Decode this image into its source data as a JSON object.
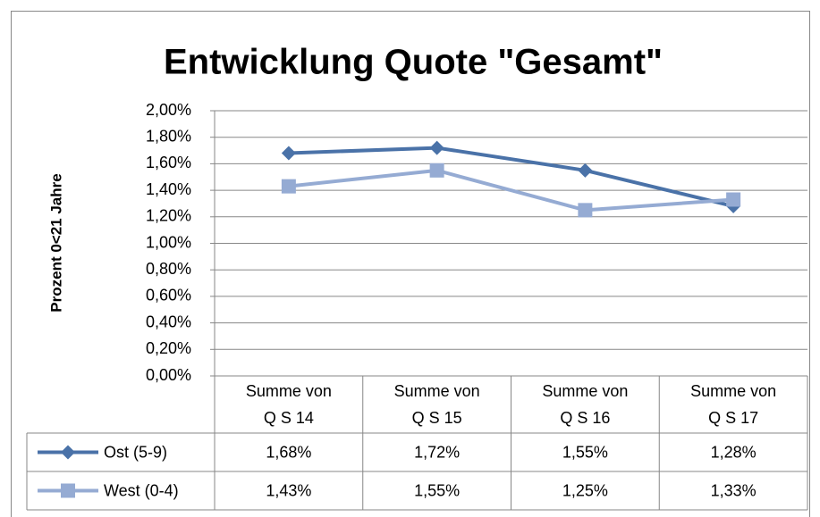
{
  "chart_data": {
    "type": "line",
    "title": "Entwicklung Quote \"Gesamt\"",
    "y_label": "Prozent 0<21 Jahre",
    "categories": [
      "Summe von Q S 14",
      "Summe von Q S 15",
      "Summe von Q S 16",
      "Summe von Q S 17"
    ],
    "series": [
      {
        "name": "Ost (5-9)",
        "color": "#4a72a8",
        "marker": "diamond",
        "values": [
          1.68,
          1.72,
          1.55,
          1.28
        ],
        "value_labels": [
          "1,68%",
          "1,72%",
          "1,55%",
          "1,28%"
        ]
      },
      {
        "name": "West (0-4)",
        "color": "#95abd3",
        "marker": "square",
        "values": [
          1.43,
          1.55,
          1.25,
          1.33
        ],
        "value_labels": [
          "1,43%",
          "1,55%",
          "1,25%",
          "1,33%"
        ]
      }
    ],
    "ylim": [
      0,
      2
    ],
    "yticks": [
      {
        "value": 0,
        "label": "0,00%"
      },
      {
        "value": 0.2,
        "label": "0,20%"
      },
      {
        "value": 0.4,
        "label": "0,40%"
      },
      {
        "value": 0.6,
        "label": "0,60%"
      },
      {
        "value": 0.8,
        "label": "0,80%"
      },
      {
        "value": 1,
        "label": "1,00%"
      },
      {
        "value": 1.2,
        "label": "1,20%"
      },
      {
        "value": 1.4,
        "label": "1,40%"
      },
      {
        "value": 1.6,
        "label": "1,60%"
      },
      {
        "value": 1.8,
        "label": "1,80%"
      },
      {
        "value": 2,
        "label": "2,00%"
      }
    ],
    "grid": true
  }
}
